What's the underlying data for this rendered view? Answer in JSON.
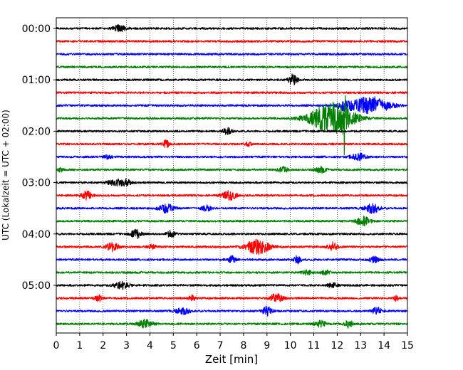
{
  "chart_data": {
    "type": "line",
    "title": "",
    "xlabel": "Zeit  [min]",
    "ylabel": "UTC (Lokalzeit = UTC + 02:00)",
    "xlim": [
      0,
      15
    ],
    "x_ticks": [
      0,
      1,
      2,
      3,
      4,
      5,
      6,
      7,
      8,
      9,
      10,
      11,
      12,
      13,
      14,
      15
    ],
    "x_tick_labels": [
      "0",
      "1",
      "2",
      "3",
      "4",
      "5",
      "6",
      "7",
      "8",
      "9",
      "10",
      "11",
      "12",
      "13",
      "14",
      "15"
    ],
    "y_tick_labels": [
      "00:00",
      "01:00",
      "02:00",
      "03:00",
      "04:00",
      "05:00"
    ],
    "y_tick_rows": [
      0,
      4,
      8,
      12,
      16,
      20
    ],
    "grid_x": true,
    "color_cycle": [
      "#000000",
      "#ff0000",
      "#0000ff",
      "#008000"
    ],
    "series": [
      {
        "row": 0,
        "color": "#000000",
        "events": [
          [
            2.7,
            5.0,
            0.25
          ]
        ]
      },
      {
        "row": 1,
        "color": "#ff0000",
        "events": []
      },
      {
        "row": 2,
        "color": "#0000ff",
        "events": []
      },
      {
        "row": 3,
        "color": "#008000",
        "events": []
      },
      {
        "row": 4,
        "color": "#000000",
        "events": [
          [
            10.1,
            7.0,
            0.2
          ]
        ]
      },
      {
        "row": 5,
        "color": "#ff0000",
        "events": []
      },
      {
        "row": 6,
        "color": "#0000ff",
        "events": [
          [
            13.4,
            12.0,
            0.8
          ],
          [
            12.3,
            5.0,
            0.3
          ]
        ]
      },
      {
        "row": 7,
        "color": "#008000",
        "events": [
          [
            11.8,
            22.0,
            0.9
          ],
          [
            12.3,
            40.0,
            0.05
          ]
        ]
      },
      {
        "row": 8,
        "color": "#000000",
        "events": [
          [
            7.3,
            4.0,
            0.2
          ]
        ]
      },
      {
        "row": 9,
        "color": "#ff0000",
        "events": [
          [
            4.7,
            5.0,
            0.15
          ],
          [
            8.2,
            3.0,
            0.1
          ]
        ]
      },
      {
        "row": 10,
        "color": "#0000ff",
        "events": [
          [
            12.9,
            5.0,
            0.3
          ],
          [
            2.2,
            3.0,
            0.15
          ]
        ]
      },
      {
        "row": 11,
        "color": "#008000",
        "events": [
          [
            9.7,
            4.0,
            0.2
          ],
          [
            11.3,
            4.0,
            0.2
          ],
          [
            0.2,
            3.0,
            0.1
          ]
        ]
      },
      {
        "row": 12,
        "color": "#000000",
        "events": [
          [
            2.6,
            4.0,
            0.4
          ],
          [
            3.0,
            3.0,
            0.2
          ]
        ]
      },
      {
        "row": 13,
        "color": "#ff0000",
        "events": [
          [
            1.3,
            6.0,
            0.2
          ],
          [
            7.4,
            6.0,
            0.3
          ]
        ]
      },
      {
        "row": 14,
        "color": "#0000ff",
        "events": [
          [
            4.7,
            6.0,
            0.3
          ],
          [
            6.4,
            4.0,
            0.2
          ],
          [
            13.5,
            6.0,
            0.3
          ]
        ]
      },
      {
        "row": 15,
        "color": "#008000",
        "events": [
          [
            13.1,
            6.0,
            0.3
          ]
        ]
      },
      {
        "row": 16,
        "color": "#000000",
        "events": [
          [
            3.4,
            6.0,
            0.2
          ],
          [
            4.9,
            4.0,
            0.2
          ]
        ]
      },
      {
        "row": 17,
        "color": "#ff0000",
        "events": [
          [
            8.6,
            10.0,
            0.5
          ],
          [
            2.4,
            6.0,
            0.25
          ],
          [
            11.8,
            6.0,
            0.2
          ],
          [
            4.1,
            3.0,
            0.15
          ]
        ]
      },
      {
        "row": 18,
        "color": "#0000ff",
        "events": [
          [
            7.5,
            5.0,
            0.15
          ],
          [
            10.3,
            5.0,
            0.15
          ],
          [
            13.6,
            4.0,
            0.2
          ]
        ]
      },
      {
        "row": 19,
        "color": "#008000",
        "events": [
          [
            10.7,
            3.0,
            0.2
          ],
          [
            11.5,
            3.0,
            0.2
          ]
        ]
      },
      {
        "row": 20,
        "color": "#000000",
        "events": [
          [
            2.8,
            5.0,
            0.35
          ],
          [
            11.8,
            3.0,
            0.2
          ]
        ]
      },
      {
        "row": 21,
        "color": "#ff0000",
        "events": [
          [
            9.4,
            7.0,
            0.25
          ],
          [
            1.8,
            5.0,
            0.15
          ],
          [
            5.8,
            4.0,
            0.15
          ],
          [
            14.5,
            4.0,
            0.1
          ]
        ]
      },
      {
        "row": 22,
        "color": "#0000ff",
        "events": [
          [
            9.0,
            6.0,
            0.2
          ],
          [
            5.4,
            4.0,
            0.3
          ],
          [
            13.7,
            5.0,
            0.2
          ]
        ]
      },
      {
        "row": 23,
        "color": "#008000",
        "events": [
          [
            3.8,
            6.0,
            0.3
          ],
          [
            12.5,
            5.0,
            0.2
          ],
          [
            11.3,
            4.0,
            0.25
          ]
        ]
      }
    ]
  }
}
